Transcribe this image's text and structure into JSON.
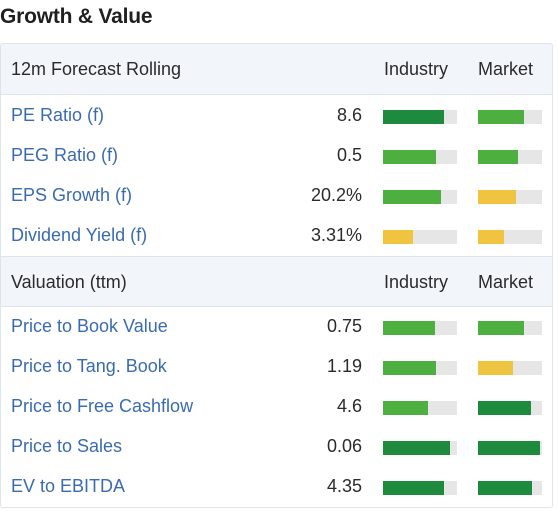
{
  "title": "Growth & Value",
  "colors": {
    "dark_green": "#1e8a3e",
    "green": "#4caf3f",
    "yellow": "#f0c341",
    "empty": "#e6e6e6",
    "link": "#3a6bb0"
  },
  "forecast": {
    "header": "12m Forecast Rolling",
    "col_industry": "Industry",
    "col_market": "Market",
    "rows": [
      {
        "label": "PE Ratio (f)",
        "value": "8.6",
        "industry": {
          "fraction": 0.82,
          "color": "#1e8a3e"
        },
        "market": {
          "fraction": 0.72,
          "color": "#4caf3f"
        }
      },
      {
        "label": "PEG Ratio (f)",
        "value": "0.5",
        "industry": {
          "fraction": 0.72,
          "color": "#4caf3f"
        },
        "market": {
          "fraction": 0.63,
          "color": "#4caf3f"
        }
      },
      {
        "label": "EPS Growth (f)",
        "value": "20.2%",
        "industry": {
          "fraction": 0.78,
          "color": "#4caf3f"
        },
        "market": {
          "fraction": 0.6,
          "color": "#f0c341"
        }
      },
      {
        "label": "Dividend Yield (f)",
        "value": "3.31%",
        "industry": {
          "fraction": 0.4,
          "color": "#f0c341"
        },
        "market": {
          "fraction": 0.41,
          "color": "#f0c341"
        }
      }
    ]
  },
  "valuation": {
    "header": "Valuation (ttm)",
    "col_industry": "Industry",
    "col_market": "Market",
    "rows": [
      {
        "label": "Price to Book Value",
        "value": "0.75",
        "industry": {
          "fraction": 0.7,
          "color": "#4caf3f"
        },
        "market": {
          "fraction": 0.72,
          "color": "#4caf3f"
        }
      },
      {
        "label": "Price to Tang. Book",
        "value": "1.19",
        "industry": {
          "fraction": 0.71,
          "color": "#4caf3f"
        },
        "market": {
          "fraction": 0.55,
          "color": "#f0c341"
        }
      },
      {
        "label": "Price to Free Cashflow",
        "value": "4.6",
        "industry": {
          "fraction": 0.61,
          "color": "#4caf3f"
        },
        "market": {
          "fraction": 0.83,
          "color": "#1e8a3e"
        }
      },
      {
        "label": "Price to Sales",
        "value": "0.06",
        "industry": {
          "fraction": 0.9,
          "color": "#1e8a3e"
        },
        "market": {
          "fraction": 0.97,
          "color": "#1e8a3e"
        }
      },
      {
        "label": "EV to EBITDA",
        "value": "4.35",
        "industry": {
          "fraction": 0.82,
          "color": "#1e8a3e"
        },
        "market": {
          "fraction": 0.85,
          "color": "#1e8a3e"
        }
      }
    ]
  }
}
